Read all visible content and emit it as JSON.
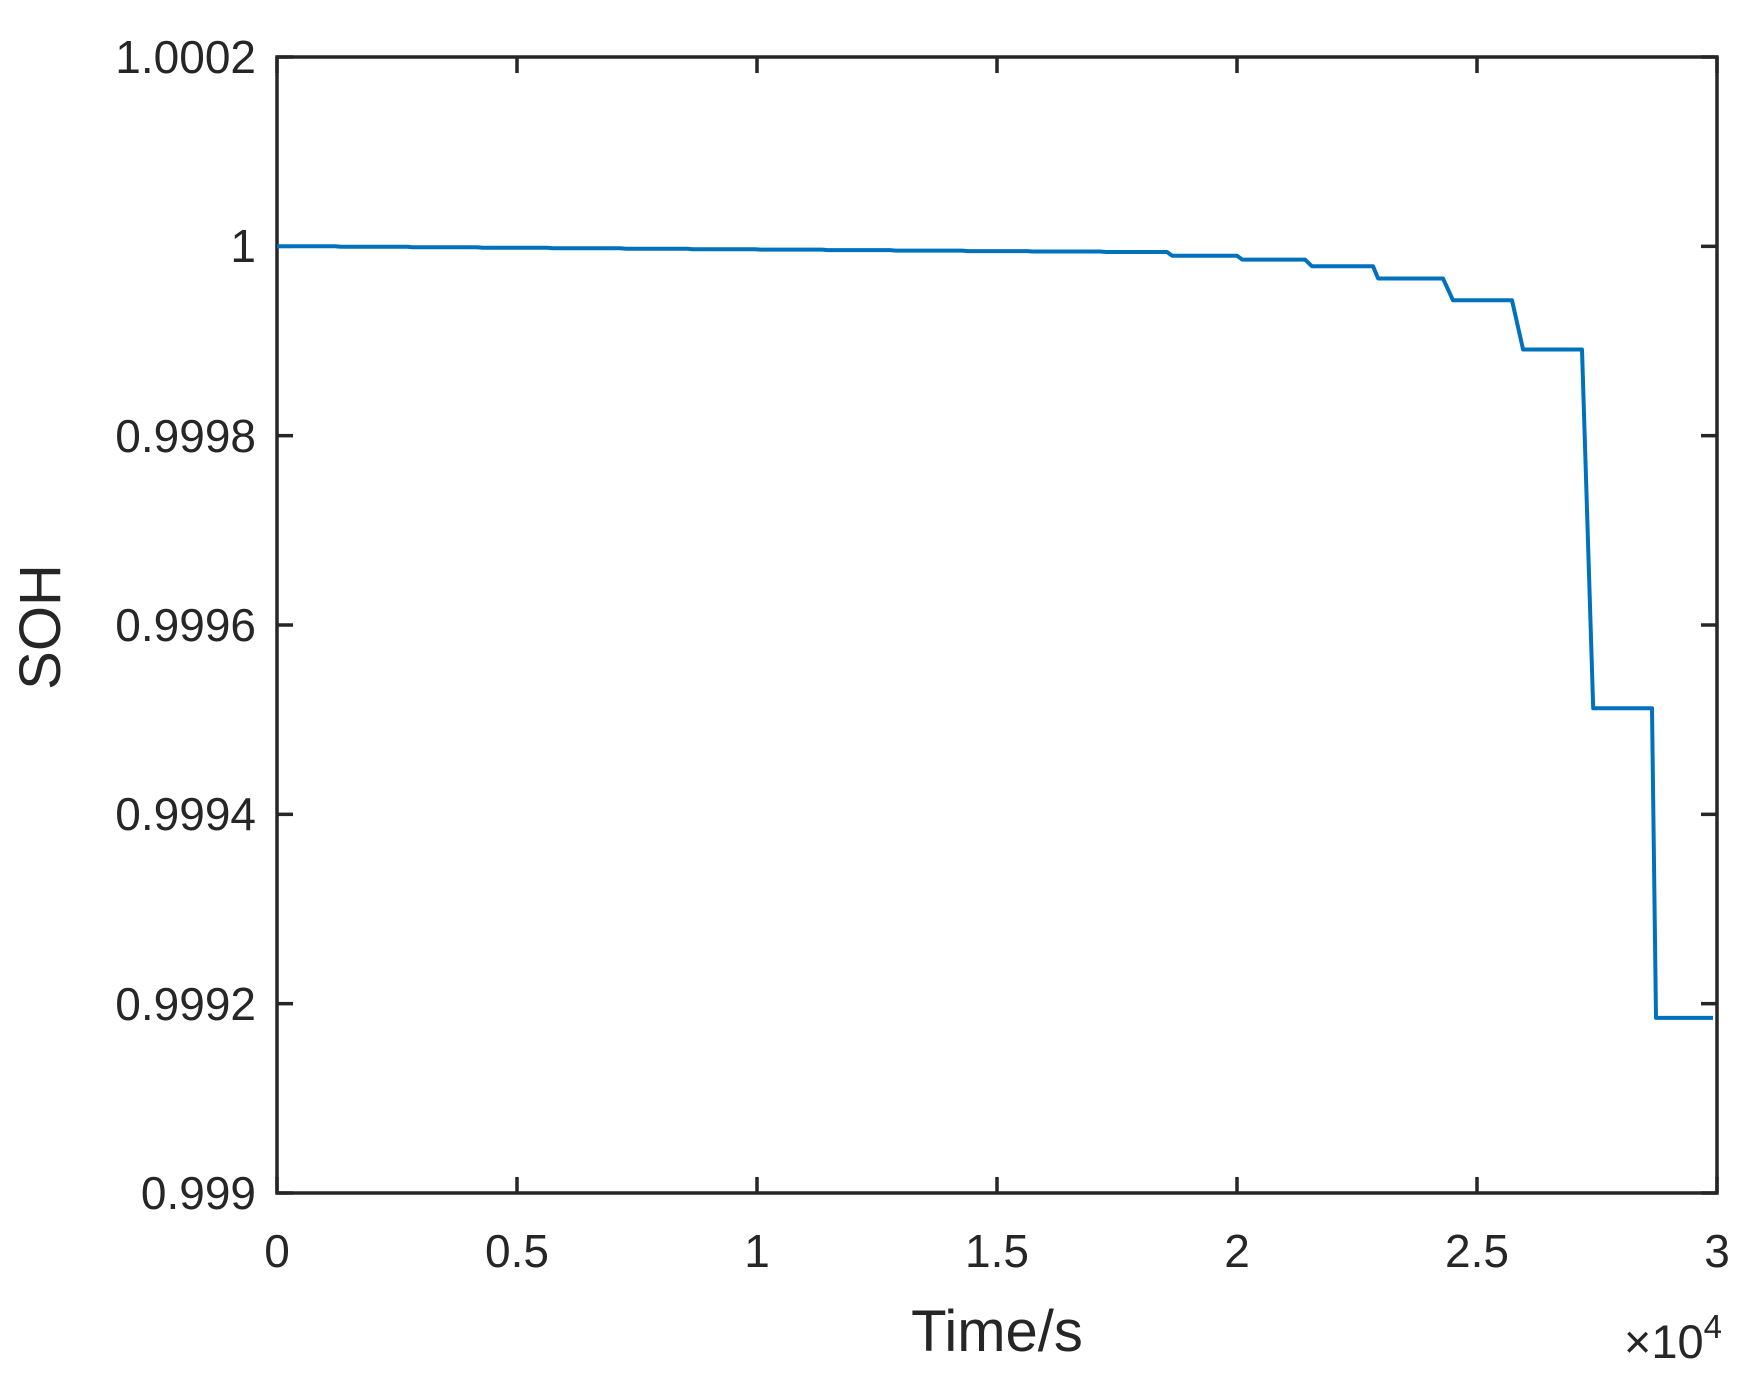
{
  "chart_data": {
    "type": "line",
    "title": "",
    "xlabel": "Time/s",
    "ylabel": "SOH",
    "x_axis_multiplier": {
      "base": "×10",
      "exp": "4"
    },
    "xlim": [
      0,
      30000
    ],
    "ylim": [
      0.999,
      1.0002
    ],
    "grid": false,
    "box": true,
    "legend": null,
    "line_color": "#0072BD",
    "axis_color": "#262626",
    "background_color": "#ffffff",
    "xticks": {
      "values": [
        0,
        5000,
        10000,
        15000,
        20000,
        25000,
        30000
      ],
      "labels": [
        "0",
        "0.5",
        "1",
        "1.5",
        "2",
        "2.5",
        "3"
      ]
    },
    "yticks": {
      "values": [
        1.0002,
        1.0,
        0.9998,
        0.9996,
        0.9994,
        0.9992,
        0.999
      ],
      "labels": [
        "1.0002",
        "1",
        "0.9998",
        "0.9996",
        "0.9994",
        "0.9992",
        "0.999"
      ]
    },
    "series": [
      {
        "name": "SOH",
        "points": [
          [
            0,
            1.0
          ],
          [
            1208,
            1.0
          ],
          [
            1330,
            0.9999995
          ],
          [
            2708,
            0.9999995
          ],
          [
            2830,
            0.999999
          ],
          [
            4167,
            0.999999
          ],
          [
            4290,
            0.9999985
          ],
          [
            5625,
            0.9999985
          ],
          [
            5750,
            0.999998
          ],
          [
            7146,
            0.999998
          ],
          [
            7270,
            0.9999975
          ],
          [
            8542,
            0.9999975
          ],
          [
            8665,
            0.999997
          ],
          [
            9958,
            0.999997
          ],
          [
            10080,
            0.9999965
          ],
          [
            11354,
            0.9999965
          ],
          [
            11475,
            0.999996
          ],
          [
            12771,
            0.999996
          ],
          [
            12890,
            0.9999955
          ],
          [
            14271,
            0.9999955
          ],
          [
            14390,
            0.999995
          ],
          [
            15625,
            0.999995
          ],
          [
            15745,
            0.9999945
          ],
          [
            17146,
            0.9999945
          ],
          [
            17270,
            0.999994
          ],
          [
            18542,
            0.999994
          ],
          [
            18650,
            0.99999
          ],
          [
            20000,
            0.99999
          ],
          [
            20110,
            0.999986
          ],
          [
            21417,
            0.999986
          ],
          [
            21560,
            0.999979
          ],
          [
            22833,
            0.999979
          ],
          [
            22940,
            0.999966
          ],
          [
            24292,
            0.999966
          ],
          [
            24500,
            0.999943
          ],
          [
            25729,
            0.999943
          ],
          [
            25960,
            0.999891
          ],
          [
            27187,
            0.999891
          ],
          [
            27420,
            0.999512
          ],
          [
            28646,
            0.999512
          ],
          [
            28730,
            0.999185
          ],
          [
            29917,
            0.999185
          ]
        ]
      }
    ]
  }
}
